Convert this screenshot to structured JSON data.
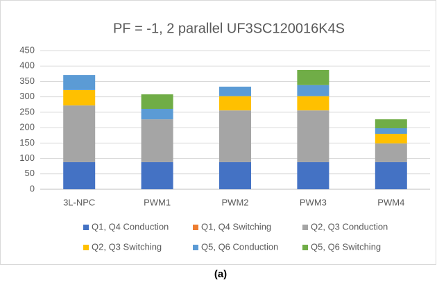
{
  "chart_data": {
    "type": "stacked_bar",
    "title": "PF = -1, 2 parallel UF3SC120016K4S",
    "categories": [
      "3L-NPC",
      "PWM1",
      "PWM2",
      "PWM3",
      "PWM4"
    ],
    "series": [
      {
        "name": "Q1, Q4 Conduction",
        "color": "#4472c4",
        "values": [
          88,
          88,
          88,
          88,
          88
        ]
      },
      {
        "name": "Q1, Q4 Switching",
        "color": "#ed7d31",
        "values": [
          0,
          0,
          0,
          0,
          0
        ]
      },
      {
        "name": "Q2, Q3 Conduction",
        "color": "#a5a5a5",
        "values": [
          184,
          139,
          168,
          168,
          61
        ]
      },
      {
        "name": "Q2, Q3 Switching",
        "color": "#ffc000",
        "values": [
          50,
          0,
          46,
          46,
          31
        ]
      },
      {
        "name": "Q5, Q6 Conduction",
        "color": "#5b9bd5",
        "values": [
          49,
          34,
          31,
          36,
          18
        ]
      },
      {
        "name": "Q5, Q6 Switching",
        "color": "#70ad47",
        "values": [
          0,
          47,
          0,
          49,
          29
        ]
      }
    ],
    "ylim": [
      0,
      450
    ],
    "yticks": [
      0,
      50,
      100,
      150,
      200,
      250,
      300,
      350,
      400,
      450
    ],
    "grid": true,
    "legend": "bottom",
    "caption": "(a)"
  }
}
